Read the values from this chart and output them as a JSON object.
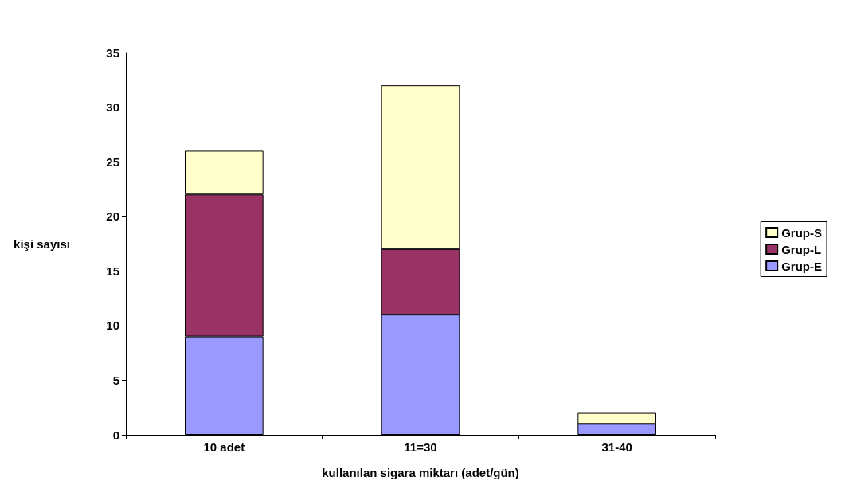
{
  "chart_data": {
    "type": "bar",
    "stacked": true,
    "xlabel": "kullanılan sigara miktarı (adet/gün)",
    "ylabel": "kişi sayısı",
    "categories": [
      "10 adet",
      "11=30",
      "31-40"
    ],
    "series": [
      {
        "name": "Grup-E",
        "color": "#9999ff",
        "values": [
          9,
          11,
          1
        ]
      },
      {
        "name": "Grup-L",
        "color": "#993366",
        "values": [
          13,
          6,
          0
        ]
      },
      {
        "name": "Grup-S",
        "color": "#ffffcc",
        "values": [
          4,
          15,
          1
        ]
      }
    ],
    "ylim": [
      0,
      35
    ],
    "yticks": [
      0,
      5,
      10,
      15,
      20,
      25,
      30,
      35
    ],
    "grid": false,
    "legend": "right"
  }
}
